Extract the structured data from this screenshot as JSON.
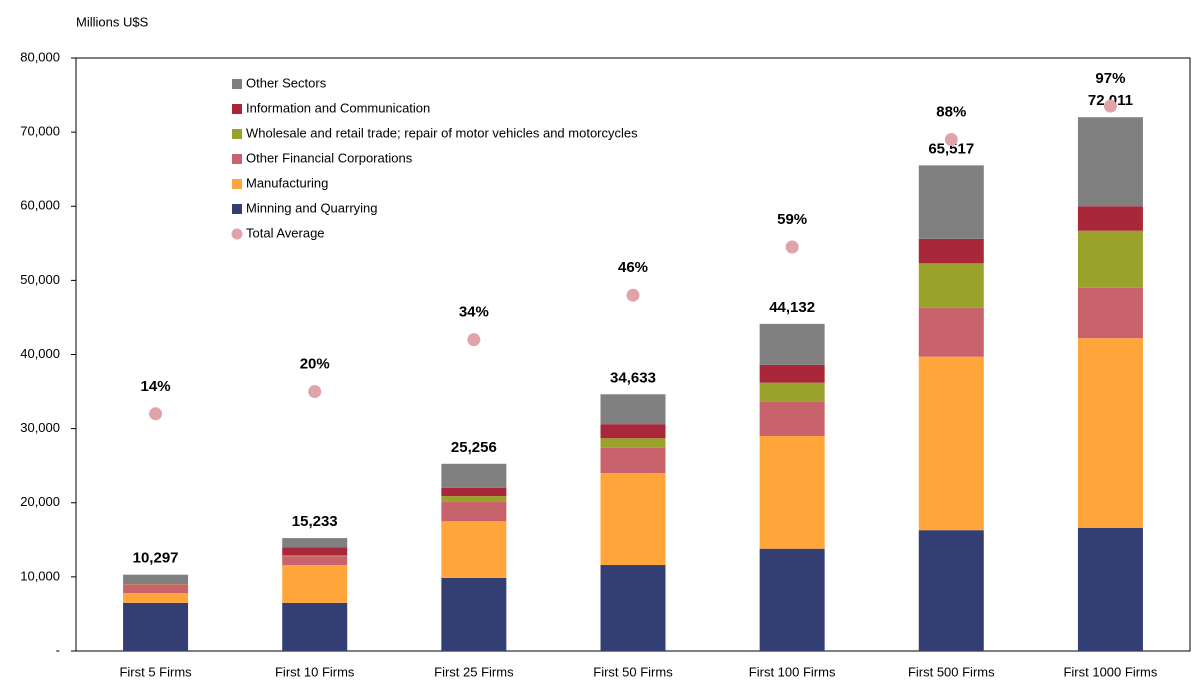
{
  "chart_data": {
    "type": "bar",
    "stacked": true,
    "y_label": "Millions U$S",
    "categories": [
      "First 5 Firms",
      "First 10 Firms",
      "First 25 Firms",
      "First 50 Firms",
      "First 100 Firms",
      "First 500 Firms",
      "First 1000 Firms"
    ],
    "series": [
      {
        "name": "Minning and Quarrying",
        "color": "#333f73",
        "values": [
          6500,
          6500,
          9850,
          11600,
          13800,
          16300,
          16600
        ]
      },
      {
        "name": "Manufacturing",
        "color": "#ffa53a",
        "values": [
          1300,
          5100,
          7650,
          12400,
          15200,
          23400,
          25600
        ]
      },
      {
        "name": "Other Financial Corporations",
        "color": "#c9636b",
        "values": [
          1200,
          1200,
          2700,
          3400,
          4600,
          6600,
          6800
        ]
      },
      {
        "name": "Wholesale and retail trade; repair of motor vehicles and motorcycles",
        "color": "#9ba22b",
        "values": [
          50,
          100,
          700,
          1300,
          2600,
          6000,
          7700
        ]
      },
      {
        "name": "Information and Communication",
        "color": "#a8283a",
        "values": [
          50,
          1100,
          1100,
          1900,
          2400,
          3300,
          3300
        ]
      },
      {
        "name": "Other Sectors",
        "color": "#808080",
        "values": [
          1197,
          1233,
          3256,
          4033,
          5532,
          9917,
          12011
        ]
      },
      {
        "name": "Total Average",
        "type": "scatter",
        "axis": "y2",
        "color": "#e0a3a8",
        "values": [
          14,
          20,
          34,
          46,
          59,
          88,
          97
        ],
        "value_labels": [
          "14%",
          "20%",
          "34%",
          "46%",
          "59%",
          "88%",
          "97%"
        ]
      }
    ],
    "totals": {
      "values": [
        10297,
        15233,
        25256,
        34633,
        44132,
        65517,
        72011
      ],
      "value_labels": [
        "10,297",
        "15,233",
        "25,256",
        "34,633",
        "44,132",
        "65,517",
        "72,011"
      ]
    },
    "ylim": [
      0,
      80000
    ],
    "yticks": [
      {
        "value": 0,
        "label": "-"
      },
      {
        "value": 10000,
        "label": "10,000"
      },
      {
        "value": 20000,
        "label": "20,000"
      },
      {
        "value": 30000,
        "label": "30,000"
      },
      {
        "value": 40000,
        "label": "40,000"
      },
      {
        "value": 50000,
        "label": "50,000"
      },
      {
        "value": 60000,
        "label": "60,000"
      },
      {
        "value": 70000,
        "label": "70,000"
      },
      {
        "value": 80000,
        "label": "80,000"
      }
    ],
    "y2lim": [
      -50,
      110
    ],
    "legend": "top-left"
  }
}
